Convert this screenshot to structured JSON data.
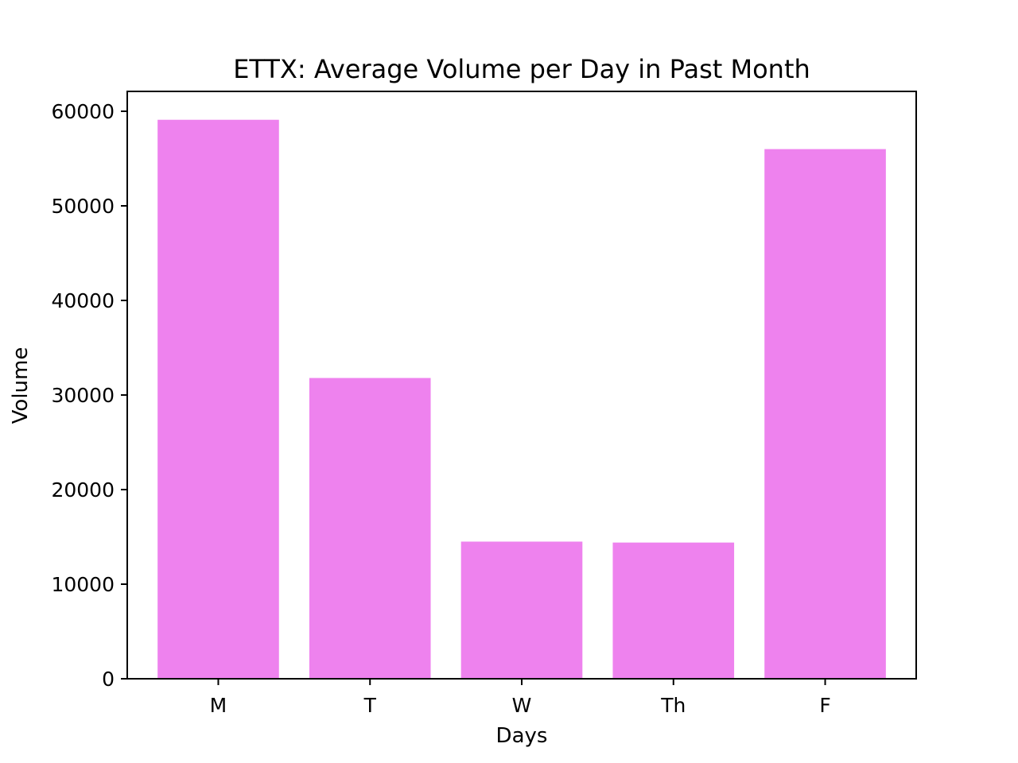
{
  "chart_data": {
    "type": "bar",
    "title": "ETTX: Average Volume per Day in Past Month",
    "xlabel": "Days",
    "ylabel": "Volume",
    "categories": [
      "M",
      "T",
      "W",
      "Th",
      "F"
    ],
    "values": [
      59100,
      31800,
      14500,
      14400,
      56000
    ],
    "ylim": [
      0,
      62100
    ],
    "yticks": [
      0,
      10000,
      20000,
      30000,
      40000,
      50000,
      60000
    ],
    "grid": false,
    "legend": "none",
    "colors": {
      "bar": "#ee82ee",
      "axis": "#000000",
      "background": "#ffffff"
    }
  }
}
